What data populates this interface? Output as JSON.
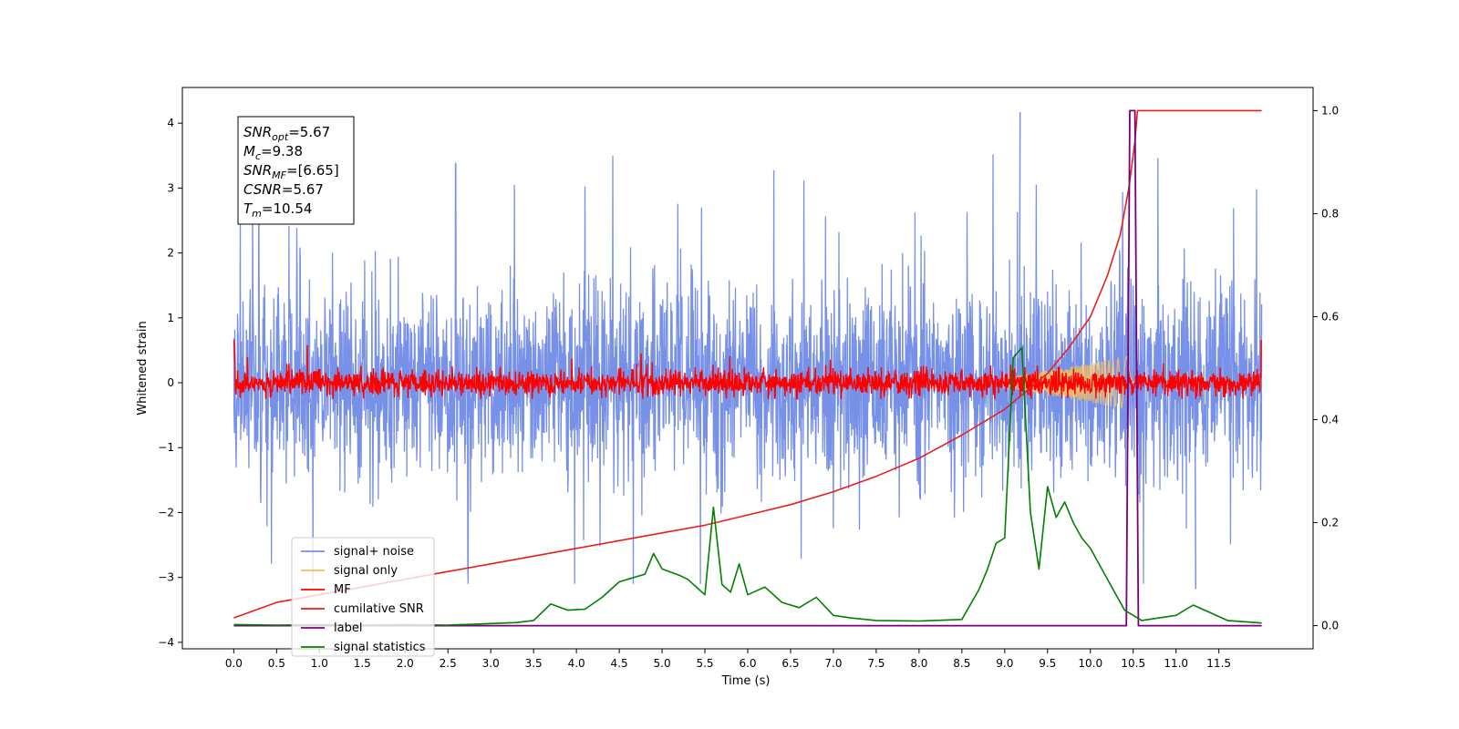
{
  "chart_data": {
    "type": "line",
    "xlabel": "Time (s)",
    "ylabel": "Whitened strain",
    "xlim": [
      -0.6,
      12.6
    ],
    "ylim": [
      -4.1,
      4.55
    ],
    "y2lim": [
      -0.045,
      1.045
    ],
    "x_ticks": [
      "0.0",
      "0.5",
      "1.0",
      "1.5",
      "2.0",
      "2.5",
      "3.0",
      "3.5",
      "4.0",
      "4.5",
      "5.0",
      "5.5",
      "6.0",
      "6.5",
      "7.0",
      "7.5",
      "8.0",
      "8.5",
      "9.0",
      "9.5",
      "10.0",
      "10.5",
      "11.0",
      "11.5"
    ],
    "y_ticks": [
      "4",
      "3",
      "2",
      "1",
      "0",
      "−1",
      "−2",
      "−3",
      "−4"
    ],
    "y2_ticks": [
      "1.0",
      "0.8",
      "0.6",
      "0.4",
      "0.2",
      "0.0"
    ],
    "annotation": {
      "lines": [
        {
          "base": "SNR",
          "sub": "opt",
          "value": "=5.67"
        },
        {
          "base": "M",
          "sub": "c",
          "value": "=9.38"
        },
        {
          "base": "SNR",
          "sub": "MF",
          "value": "=[6.65]"
        },
        {
          "base": "CSNR",
          "sub": "",
          "value": "=5.67"
        },
        {
          "base": "T",
          "sub": "m",
          "value": "=10.54"
        }
      ]
    },
    "legend": {
      "placement": "lower-left",
      "entries": [
        "signal+ noise",
        "signal only",
        "MF",
        "cumilative SNR",
        "label",
        "signal statistics"
      ]
    },
    "colors": {
      "signal_noise": "#7891e8",
      "signal_only": "#f5c060",
      "mf": "#ff0000",
      "cumulative_snr": "#e8201c",
      "label": "#7a007a",
      "signal_statistics": "#008000"
    },
    "series": [
      {
        "name": "cumilative SNR",
        "axis": "right",
        "x": [
          0.0,
          0.5,
          1.0,
          1.5,
          2.0,
          2.5,
          3.0,
          3.5,
          4.0,
          4.5,
          5.0,
          5.5,
          6.0,
          6.5,
          7.0,
          7.5,
          8.0,
          8.5,
          9.0,
          9.5,
          9.75,
          10.0,
          10.2,
          10.35,
          10.45,
          10.52,
          10.55,
          11.0,
          11.5,
          12.0
        ],
        "values": [
          0.015,
          0.045,
          0.06,
          0.075,
          0.09,
          0.105,
          0.12,
          0.135,
          0.15,
          0.165,
          0.18,
          0.195,
          0.215,
          0.235,
          0.26,
          0.29,
          0.325,
          0.37,
          0.42,
          0.49,
          0.54,
          0.6,
          0.68,
          0.76,
          0.85,
          0.94,
          1.0,
          1.0,
          1.0,
          1.0
        ]
      },
      {
        "name": "label",
        "axis": "right",
        "x": [
          0.0,
          10.42,
          10.46,
          10.52,
          10.56,
          12.0
        ],
        "values": [
          0.0,
          0.0,
          1.0,
          1.0,
          0.0,
          0.0
        ]
      },
      {
        "name": "signal statistics",
        "axis": "right",
        "x": [
          0.0,
          0.5,
          1.0,
          1.5,
          2.0,
          2.5,
          3.0,
          3.3,
          3.5,
          3.7,
          3.9,
          4.1,
          4.3,
          4.5,
          4.6,
          4.8,
          4.9,
          5.0,
          5.2,
          5.3,
          5.5,
          5.6,
          5.7,
          5.8,
          5.9,
          6.0,
          6.2,
          6.4,
          6.6,
          6.8,
          7.0,
          7.2,
          7.5,
          8.0,
          8.5,
          8.7,
          8.8,
          8.9,
          9.0,
          9.1,
          9.2,
          9.3,
          9.4,
          9.5,
          9.6,
          9.7,
          9.8,
          9.9,
          10.0,
          10.2,
          10.4,
          10.6,
          10.8,
          11.0,
          11.2,
          11.4,
          11.6,
          12.0
        ],
        "values": [
          0.002,
          0.001,
          0.002,
          0.001,
          0.002,
          0.001,
          0.004,
          0.006,
          0.01,
          0.042,
          0.03,
          0.032,
          0.055,
          0.085,
          0.09,
          0.1,
          0.14,
          0.11,
          0.098,
          0.09,
          0.06,
          0.23,
          0.08,
          0.065,
          0.12,
          0.06,
          0.075,
          0.045,
          0.035,
          0.055,
          0.02,
          0.015,
          0.01,
          0.009,
          0.012,
          0.07,
          0.11,
          0.16,
          0.17,
          0.52,
          0.54,
          0.22,
          0.11,
          0.27,
          0.21,
          0.24,
          0.2,
          0.17,
          0.15,
          0.09,
          0.03,
          0.01,
          0.015,
          0.02,
          0.04,
          0.025,
          0.01,
          0.005
        ]
      },
      {
        "name": "signal+ noise",
        "axis": "left",
        "x_range": [
          0.0,
          12.0
        ],
        "envelope_rms": 0.78,
        "peak_max": 4.17,
        "peak_min": -3.18
      },
      {
        "name": "MF",
        "axis": "left",
        "x_range": [
          0.0,
          12.0
        ],
        "envelope_rms": 0.1,
        "start_value": 1.0,
        "end_value": 0.92
      }
    ]
  }
}
